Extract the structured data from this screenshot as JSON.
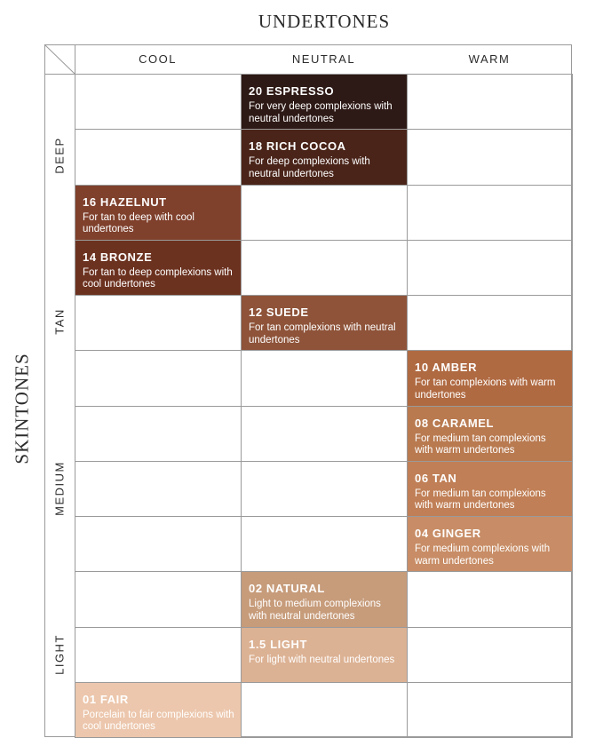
{
  "title": "UNDERTONES",
  "side_label": "SKINTONES",
  "columns": [
    "COOL",
    "NEUTRAL",
    "WARM"
  ],
  "row_groups": [
    "DEEP",
    "TAN",
    "MEDIUM",
    "LIGHT"
  ],
  "shades": [
    {
      "name": "20 ESPRESSO",
      "description": "For very deep complexions with neutral undertones",
      "column": "NEUTRAL",
      "color": "#2d1915"
    },
    {
      "name": "18 RICH COCOA",
      "description": "For deep complexions with neutral undertones",
      "column": "NEUTRAL",
      "color": "#4a2419"
    },
    {
      "name": "16 HAZELNUT",
      "description": "For tan to deep with cool undertones",
      "column": "COOL",
      "color": "#7f402c"
    },
    {
      "name": "14 BRONZE",
      "description": "For tan to deep complexions with cool undertones",
      "column": "COOL",
      "color": "#6c3220"
    },
    {
      "name": "12 SUEDE",
      "description": "For tan complexions with neutral undertones",
      "column": "NEUTRAL",
      "color": "#8e5339"
    },
    {
      "name": "10 AMBER",
      "description": "For tan complexions with warm undertones",
      "column": "WARM",
      "color": "#b06a42"
    },
    {
      "name": "08 CARAMEL",
      "description": "For medium tan complexions with warm undertones",
      "column": "WARM",
      "color": "#b97a50"
    },
    {
      "name": "06 TAN",
      "description": "For medium tan complexions with warm undertones",
      "column": "WARM",
      "color": "#c07f56"
    },
    {
      "name": "04 GINGER",
      "description": "For medium complexions with warm undertones",
      "column": "WARM",
      "color": "#c88d66"
    },
    {
      "name": "02 NATURAL",
      "description": "Light to medium complexions with neutral undertones",
      "column": "NEUTRAL",
      "color": "#c79c7b"
    },
    {
      "name": "1.5 LIGHT",
      "description": "For light with neutral undertones",
      "column": "NEUTRAL",
      "color": "#dcb294"
    },
    {
      "name": "01 FAIR",
      "description": "Porcelain to fair complexions with cool undertones",
      "column": "COOL",
      "color": "#ecc7ad"
    }
  ]
}
